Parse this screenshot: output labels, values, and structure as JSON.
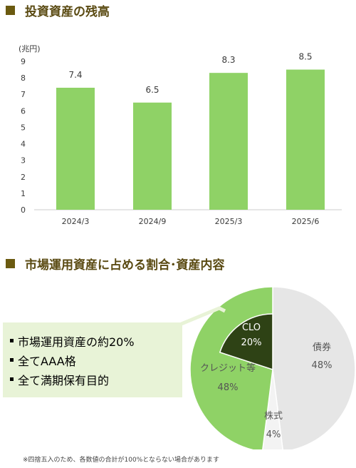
{
  "sections": {
    "balance_title": "投資資産の残高",
    "allocation_title": "市場運用資産に占める割合･資産内容"
  },
  "callout": {
    "items": [
      "市場運用資産の約20%",
      "全てAAA格",
      "全て満期保有目的"
    ]
  },
  "footnote": "※四捨五入のため、各数値の合計が100%とならない場合があります",
  "colors": {
    "bar": "#8fd266",
    "clo": "#2e4215",
    "credit": "#8fd266",
    "stock": "#f3f3f3",
    "bond": "#e6e6e6",
    "title_marker": "#6b5a10",
    "title_text": "#5a4a12",
    "callout_bg": "#e8f3d7"
  },
  "chart_data": [
    {
      "type": "bar",
      "categories": [
        "2024/3",
        "2024/9",
        "2025/3",
        "2025/6"
      ],
      "values": [
        7.4,
        6.5,
        8.3,
        8.5
      ],
      "data_labels": [
        "7.4",
        "6.5",
        "8.3",
        "8.5"
      ],
      "ylabel": "(兆円)",
      "ylim": [
        0,
        9
      ],
      "yticks": [
        0,
        1,
        2,
        3,
        4,
        5,
        6,
        7,
        8,
        9
      ],
      "grid": false,
      "legend": "none"
    },
    {
      "type": "pie",
      "slices": [
        {
          "label": "債券",
          "value": 48,
          "value_label": "48%"
        },
        {
          "label": "株式",
          "value": 4,
          "value_label": "4%"
        },
        {
          "label": "クレジット等",
          "value": 48,
          "value_label": "48%"
        }
      ],
      "sub_slice": {
        "label": "CLO",
        "value": 20,
        "value_label": "20%",
        "within": "クレジット等"
      },
      "legend": "none"
    }
  ]
}
